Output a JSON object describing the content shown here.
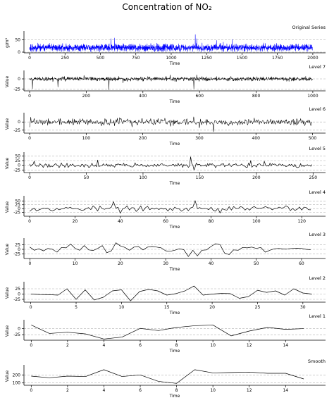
{
  "figure": {
    "title": "Concentration of NO₂"
  },
  "chart_data": [
    {
      "type": "line",
      "title": "Original Series",
      "xlabel": "Time",
      "ylabel": "g/m³",
      "color": "#0000ff",
      "xlim": [
        -40,
        2090
      ],
      "ylim": [
        0,
        75
      ],
      "xticks": [
        0,
        250,
        500,
        750,
        1000,
        1250,
        1500,
        1750,
        2000
      ],
      "yticks": [
        0,
        50
      ],
      "n": 2000,
      "seed": 11,
      "base": 18,
      "amp": 10,
      "spikes": [
        [
          575,
          55
        ],
        [
          600,
          58
        ],
        [
          1170,
          72
        ],
        [
          1180,
          55
        ],
        [
          1430,
          52
        ],
        [
          1320,
          48
        ]
      ]
    },
    {
      "type": "line",
      "title": "Level 7",
      "xlabel": "Time",
      "ylabel": "Value",
      "color": "#000000",
      "xlim": [
        -20,
        1045
      ],
      "ylim": [
        -28,
        14
      ],
      "xticks": [
        0,
        200,
        400,
        600,
        800,
        1000
      ],
      "yticks": [
        -25,
        0
      ],
      "n": 1000,
      "seed": 23,
      "base": 0,
      "amp": 3.5,
      "spikes": [
        [
          10,
          -24
        ],
        [
          100,
          -20
        ],
        [
          280,
          -27
        ],
        [
          580,
          -24
        ],
        [
          590,
          10
        ],
        [
          330,
          -10
        ]
      ]
    },
    {
      "type": "line",
      "title": "Level 6",
      "xlabel": "Time",
      "ylabel": "Value",
      "color": "#000000",
      "xlim": [
        -10,
        523
      ],
      "ylim": [
        -32,
        20
      ],
      "xticks": [
        0,
        100,
        200,
        300,
        400,
        500
      ],
      "yticks": [
        -25,
        0
      ],
      "n": 500,
      "seed": 37,
      "base": 0,
      "amp": 7,
      "spikes": [
        [
          2,
          15
        ],
        [
          290,
          16
        ],
        [
          300,
          -18
        ],
        [
          325,
          -30
        ],
        [
          150,
          -12
        ]
      ]
    },
    {
      "type": "line",
      "title": "Level 5",
      "xlabel": "Time",
      "ylabel": "Value",
      "color": "#000000",
      "xlim": [
        -5,
        261
      ],
      "ylim": [
        -35,
        55
      ],
      "xticks": [
        0,
        50,
        100,
        150,
        200,
        250
      ],
      "yticks": [
        -25,
        0,
        25,
        50
      ],
      "n": 250,
      "seed": 41,
      "base": 0,
      "amp": 8,
      "spikes": [
        [
          142,
          45
        ],
        [
          145,
          -25
        ],
        [
          60,
          28
        ],
        [
          195,
          25
        ]
      ]
    },
    {
      "type": "line",
      "title": "Level 4",
      "xlabel": "Time",
      "ylabel": "Value",
      "color": "#000000",
      "xlim": [
        -2.5,
        130.5
      ],
      "ylim": [
        -45,
        65
      ],
      "xticks": [
        0,
        20,
        40,
        60,
        80,
        100,
        120
      ],
      "yticks": [
        -25,
        0,
        25,
        50
      ],
      "n": 125,
      "seed": 53,
      "base": 0,
      "amp": 12,
      "spikes": [
        [
          37,
          45
        ],
        [
          73,
          52
        ],
        [
          84,
          -28
        ],
        [
          40,
          -30
        ]
      ]
    },
    {
      "type": "line",
      "title": "Level 3",
      "xlabel": "Time",
      "ylabel": "Value",
      "color": "#000000",
      "xlim": [
        -1.3,
        65.3
      ],
      "ylim": [
        -45,
        45
      ],
      "xticks": [
        0,
        10,
        20,
        30,
        40,
        50,
        60
      ],
      "yticks": [
        -25,
        0,
        25
      ],
      "x": [
        0,
        1,
        2,
        3,
        4,
        5,
        6,
        7,
        8,
        9,
        10,
        11,
        12,
        13,
        14,
        15,
        16,
        17,
        18,
        19,
        20,
        21,
        22,
        23,
        24,
        25,
        26,
        27,
        28,
        29,
        30,
        31,
        32,
        33,
        34,
        35,
        36,
        37,
        38,
        39,
        40,
        41,
        42,
        43,
        44,
        45,
        46,
        47,
        48,
        49,
        50,
        51,
        52,
        53,
        54,
        55,
        56,
        57,
        58,
        59,
        60,
        61,
        62
      ],
      "values": [
        12,
        -5,
        3,
        -8,
        5,
        0,
        -15,
        10,
        8,
        28,
        5,
        -5,
        20,
        -3,
        -6,
        5,
        20,
        -18,
        -8,
        35,
        18,
        10,
        -5,
        12,
        15,
        -3,
        12,
        15,
        12,
        8,
        -8,
        -10,
        -5,
        3,
        -2,
        -38,
        -5,
        -35,
        -5,
        -3,
        15,
        30,
        25,
        -20,
        -28,
        -3,
        -5,
        10,
        8,
        12,
        5,
        10,
        -15,
        -5,
        3,
        5,
        2,
        3,
        5,
        6,
        5,
        0,
        -2
      ]
    },
    {
      "type": "line",
      "title": "Level 2",
      "xlabel": "Time",
      "ylabel": "Value",
      "color": "#000000",
      "xlim": [
        -0.75,
        32.5
      ],
      "ylim": [
        -35,
        45
      ],
      "xticks": [
        0,
        5,
        10,
        15,
        20,
        25,
        30
      ],
      "yticks": [
        -25,
        0,
        25
      ],
      "x": [
        0,
        1,
        2,
        3,
        4,
        5,
        6,
        7,
        8,
        9,
        10,
        11,
        12,
        13,
        14,
        15,
        16,
        17,
        18,
        19,
        20,
        21,
        22,
        23,
        24,
        25,
        26,
        27,
        28,
        29,
        30,
        31
      ],
      "values": [
        0,
        -2,
        -3,
        -5,
        25,
        -25,
        20,
        -28,
        -15,
        15,
        20,
        -32,
        12,
        22,
        15,
        -5,
        2,
        15,
        38,
        -5,
        0,
        3,
        2,
        -20,
        -12,
        18,
        8,
        15,
        -5,
        25,
        5,
        0
      ]
    },
    {
      "type": "line",
      "title": "Level 1",
      "xlabel": "Time",
      "ylabel": "Value",
      "color": "#000000",
      "xlim": [
        -0.4,
        16.2
      ],
      "ylim": [
        -45,
        25
      ],
      "xticks": [
        0,
        2,
        4,
        6,
        8,
        10,
        12,
        14
      ],
      "yticks": [
        -25,
        0
      ],
      "x": [
        0,
        1,
        2,
        3,
        4,
        5,
        6,
        7,
        8,
        9,
        10,
        11,
        12,
        13,
        14,
        15
      ],
      "values": [
        15,
        -20,
        -15,
        -22,
        -43,
        -35,
        1,
        -8,
        5,
        12,
        15,
        -30,
        -10,
        5,
        -3,
        0
      ]
    },
    {
      "type": "line",
      "title": "Smooth",
      "xlabel": "Time",
      "ylabel": "Value",
      "color": "#000000",
      "xlim": [
        -0.4,
        16.2
      ],
      "ylim": [
        80,
        290
      ],
      "xticks": [
        0,
        2,
        4,
        6,
        8,
        10,
        12,
        14
      ],
      "yticks": [
        100,
        200
      ],
      "x": [
        0,
        1,
        2,
        3,
        4,
        5,
        6,
        7,
        8,
        9,
        10,
        11,
        12,
        13,
        14,
        15
      ],
      "values": [
        185,
        165,
        185,
        180,
        265,
        180,
        200,
        120,
        95,
        265,
        225,
        230,
        235,
        220,
        220,
        150
      ]
    }
  ]
}
